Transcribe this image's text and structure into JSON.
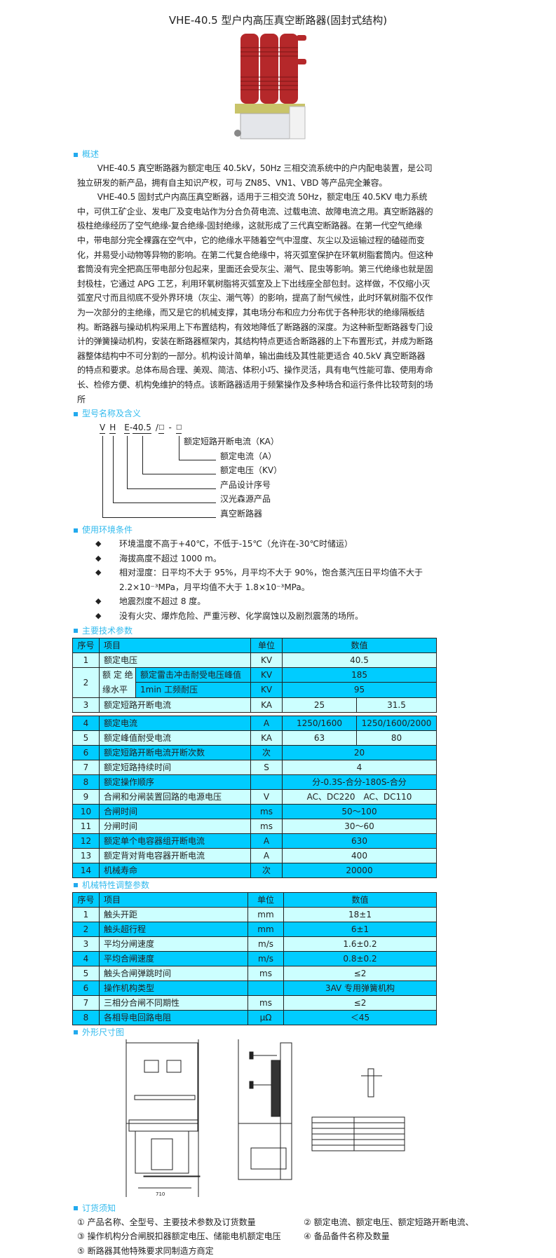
{
  "title": "VHE-40.5 型户内高压真空断路器(固封式结构)",
  "colors": {
    "accent": "#33bbee",
    "table_dark": "#00ccff",
    "table_light": "#ccffff",
    "insulator_red": "#b5282a"
  },
  "overview": {
    "heading": "概述",
    "paragraphs": [
      "VHE-40.5 真空断路器为额定电压 40.5kV，50Hz 三相交流系统中的户内配电装置，是公司独立研发的新产品，拥有自主知识产权，可与 ZN85、VN1、VBD 等产品完全兼容。",
      "VHE-40.5 固封式户内高压真空断器，适用于三相交流 50Hz，额定电压 40.5KV 电力系统中，可供工矿企业、发电厂及变电站作为分合负荷电流、过载电流、故障电流之用。真空断路器的极柱绝缘经历了空气绝缘-复合绝缘-固封绝缘，这就形成了三代真空断路器。在第一代空气绝缘中，带电部分完全裸露在空气中，它的绝缘水平随着空气中湿度、灰尘以及运输过程的磕碰而变化，并易受小动物等异物的影响。在第二代复合绝缘中，将灭弧室保护在环氧树脂套筒内。但这种套筒没有完全把高压带电部分包起来，里面还会受灰尘、潮气、昆虫等影响。第三代绝缘也就是固封极柱，它通过 APG 工艺，利用环氧树脂将灭弧室及上下出线座全部包封。这样做，不仅缩小灭弧室尺寸而且彻底不受外界环境（灰尘、潮气等）的影响，提高了耐气候性，此时环氧树脂不仅作为一次部分的主绝缘，而又是它的机械支撑，其电场分布和应力分布优于各种形状的绝缘隔板结构。断路器与操动机构采用上下布置结构，有效地降低了断路器的深度。为这种新型断路器专门设计的弹簧操动机构，安装在断路器框架内，其结构特点更适合断路器的上下布置形式，并成为断路器整体结构中不可分割的一部分。机构设计简单，输出曲线及其性能更适合 40.5kV 真空断路器的特点和要求。总体布局合理、美观、简洁、体积小巧、操作灵活，具有电气性能可靠、使用寿命长、检修方便、机构免维护的特点。该断路器适用于频繁操作及多种场合和运行条件比较苛刻的场所"
    ]
  },
  "model": {
    "heading": "型号名称及含义",
    "code": [
      "V",
      "H",
      "E",
      "40.5",
      "□",
      "□"
    ],
    "sep": [
      "-",
      "/",
      "-"
    ],
    "labels": [
      "额定短路开断电流（KA）",
      "额定电流（A）",
      "额定电压（KV）",
      "产品设计序号",
      "汉光森源产品",
      "真空断路器"
    ]
  },
  "environment": {
    "heading": "使用环境条件",
    "items": [
      "环境温度不高于+40℃，不低于-15℃（允许在-30℃时储运）",
      "海拔高度不超过 1000 m。",
      "相对湿度：日平均不大于 95%，月平均不大于 90%，饱合蒸汽压日平均值不大于 2.2×10⁻³MPa，月平均值不大于 1.8×10⁻³MPa。",
      "地震烈度不超过 8 度。",
      "没有火灾、爆炸危险、严重污秽、化学腐蚀以及剧烈震荡的场所。"
    ]
  },
  "tech_params": {
    "heading": "主要技术参数",
    "headers": [
      "序号",
      "项目",
      "单位",
      "数值"
    ],
    "row1": [
      "1",
      "额定电压",
      "KV",
      "40.5"
    ],
    "row2": {
      "no": "2",
      "group": "额 定 绝 缘水平",
      "sub": [
        [
          "额定雷击冲击耐受电压峰值",
          "KV",
          "185"
        ],
        [
          "1min 工频耐压",
          "KV",
          "95"
        ]
      ]
    },
    "row3": [
      "3",
      "额定短路开断电流",
      "KA",
      "25",
      "31.5"
    ],
    "row4": [
      "4",
      "额定电流",
      "A",
      "1250/1600",
      "1250/1600/2000"
    ],
    "row5": [
      "5",
      "额定峰值耐受电流",
      "KA",
      "63",
      "80"
    ],
    "rows": [
      [
        "6",
        "额定短路开断电流开断次数",
        "次",
        "20"
      ],
      [
        "7",
        "额定短路持续时间",
        "S",
        "4"
      ],
      [
        "8",
        "额定操作顺序",
        "",
        "分-0.3S-合分-180S-合分"
      ],
      [
        "9",
        "合闸和分闸装置回路的电源电压",
        "V",
        "AC、DC220　AC、DC110"
      ],
      [
        "10",
        "合闸时间",
        "ms",
        "50～100"
      ],
      [
        "11",
        "分闸时间",
        "ms",
        "30～60"
      ],
      [
        "12",
        "额定单个电容器组开断电流",
        "A",
        "630"
      ],
      [
        "13",
        "额定背对背电容器开断电流",
        "A",
        "400"
      ],
      [
        "14",
        "机械寿命",
        "次",
        "20000"
      ]
    ]
  },
  "mech_params": {
    "heading": "机械特性调整参数",
    "headers": [
      "序号",
      "项目",
      "单位",
      "数值"
    ],
    "rows": [
      [
        "1",
        "触头开距",
        "mm",
        "18±1"
      ],
      [
        "2",
        "触头超行程",
        "mm",
        "6±1"
      ],
      [
        "3",
        "平均分闸速度",
        "m/s",
        "1.6±0.2"
      ],
      [
        "4",
        "平均合闸速度",
        "m/s",
        "0.8±0.2"
      ],
      [
        "5",
        "触头合闸弹跳时间",
        "ms",
        "≤2"
      ],
      [
        "6",
        "操作机构类型",
        "",
        "3AV 专用弹簧机构"
      ],
      [
        "7",
        "三相分合闸不同期性",
        "ms",
        "≤2"
      ],
      [
        "8",
        "各相导电回路电阻",
        "μΩ",
        "＜45"
      ]
    ]
  },
  "dimensions": {
    "heading": "外形尺寸图",
    "width_label": "710"
  },
  "ordering": {
    "heading": "订货须知",
    "items": [
      "① 产品名称、全型号、主要技术参数及订货数量",
      "② 额定电流、额定电压、额定短路开断电流、",
      "③ 操作机构分合闸脱扣器额定电压、储能电机额定电压",
      "④ 备品备件名称及数量",
      "⑤ 断路器其他特殊要求同制造方商定"
    ]
  }
}
